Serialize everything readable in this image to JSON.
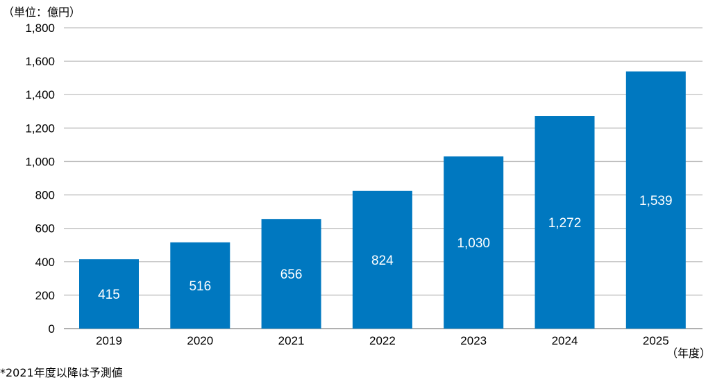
{
  "chart_data": {
    "type": "bar",
    "unit_label": "（単位：億円）",
    "x_unit_label": "（年度）",
    "footnote": "*2021年度以降は予測値",
    "categories": [
      "2019",
      "2020",
      "2021",
      "2022",
      "2023",
      "2024",
      "2025"
    ],
    "values": [
      415,
      516,
      656,
      824,
      1030,
      1272,
      1539
    ],
    "data_labels": [
      "415",
      "516",
      "656",
      "824",
      "1,030",
      "1,272",
      "1,539"
    ],
    "y_ticks": [
      "0",
      "200",
      "400",
      "600",
      "800",
      "1,000",
      "1,200",
      "1,400",
      "1,600",
      "1,800"
    ],
    "y_tick_values": [
      0,
      200,
      400,
      600,
      800,
      1000,
      1200,
      1400,
      1600,
      1800
    ],
    "ylim": [
      0,
      1800
    ],
    "grid": true,
    "colors": {
      "bar": "#0078C0",
      "grid": "#BFBFBF",
      "axis": "#808080"
    }
  }
}
